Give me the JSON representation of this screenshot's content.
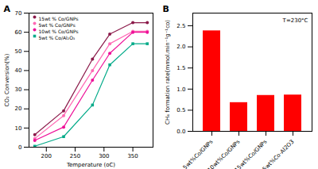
{
  "chart_data": [
    {
      "type": "line",
      "title": "A",
      "x": [
        180,
        230,
        280,
        310,
        350,
        375
      ],
      "series": [
        {
          "name": "15wt % Co/GNPs",
          "color": "#8B1A4A",
          "marker": "circle",
          "values": [
            6.5,
            19.0,
            46.0,
            59.0,
            65.0,
            65.0
          ]
        },
        {
          "name": "5wt % Co/GNPs",
          "color": "#FF69B4",
          "marker": "circle",
          "values": [
            4.5,
            16.5,
            40.0,
            54.0,
            60.5,
            60.5
          ]
        },
        {
          "name": "10wt % Co/GNPs",
          "color": "#EE1199",
          "marker": "circle",
          "values": [
            3.5,
            10.5,
            35.0,
            49.0,
            60.0,
            60.0
          ]
        },
        {
          "name": "5wt % Co/Al₂O₃",
          "color": "#00AA88",
          "marker": "square",
          "values": [
            0.5,
            5.5,
            22.0,
            43.0,
            54.0,
            54.0
          ]
        }
      ],
      "xlabel": "Temperature (oC)",
      "ylabel": "CO₂ Conversion(%)",
      "xlim": [
        170,
        385
      ],
      "ylim": [
        0,
        70
      ],
      "xticks": [
        200,
        250,
        300,
        350
      ],
      "yticks": [
        0,
        10,
        20,
        30,
        40,
        50,
        60,
        70
      ],
      "legend": "upper left",
      "grid": false
    },
    {
      "type": "bar",
      "title": "B",
      "categories": [
        "5wt%Co/GNPs",
        "10wt%Co/GNPs",
        "15wt%Co/GNPs",
        "5wt%Co-Al2O3"
      ],
      "values": [
        2.38,
        0.68,
        0.85,
        0.86
      ],
      "color": "#FF0000",
      "ylabel": "CH₄ formation rate(mmol.min⁻¹g⁻¹co)",
      "annotation": "T=230°C",
      "ylim": [
        0,
        2.8
      ],
      "yticks": [
        {
          "value": 0,
          "label": "0.0"
        },
        0.5,
        {
          "value": 1,
          "label": "1.0"
        },
        1.5,
        {
          "value": 2,
          "label": "2.0"
        },
        2.5
      ],
      "grid": false
    }
  ]
}
